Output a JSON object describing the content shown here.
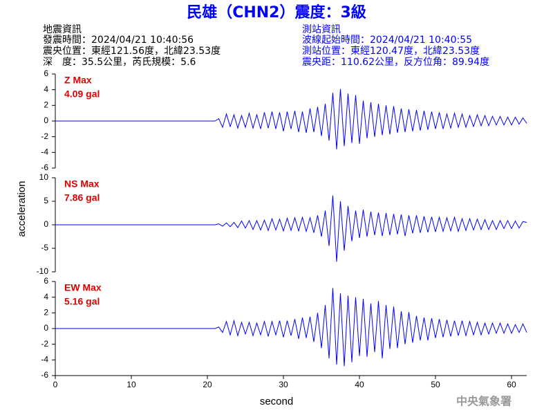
{
  "header": {
    "title": "民雄（CHN2）震度：3級",
    "left": [
      "地震資訊",
      "發震時間：2024/04/21 10:40:56",
      "震央位置：東經121.56度，北緯23.53度",
      "深　度：35.5公里，芮氏規模：5.6"
    ],
    "right": [
      "測站資訊",
      "波線起始時間：2024/04/21 10:40:55",
      "測站位置：東經120.47度，北緯23.53度",
      "震央距：110.62公里，反方位角：89.94度"
    ]
  },
  "footer": "中央氣象署",
  "chart_data": [
    {
      "type": "line",
      "annotation": [
        "Z Max",
        "4.09 gal"
      ],
      "color": "#0000ff",
      "x": [
        0,
        21,
        21.5,
        22,
        22.5,
        23,
        23.5,
        24,
        24.5,
        25,
        25.5,
        26,
        26.5,
        27,
        27.5,
        28,
        28.5,
        29,
        29.5,
        30,
        30.5,
        31,
        31.5,
        32,
        32.5,
        33,
        33.5,
        34,
        34.5,
        35,
        35.5,
        36,
        36.5,
        37,
        37.5,
        38,
        38.5,
        39,
        39.5,
        40,
        40.5,
        41,
        41.5,
        42,
        42.5,
        43,
        43.5,
        44,
        44.5,
        45,
        45.5,
        46,
        46.5,
        47,
        47.5,
        48,
        48.5,
        49,
        49.5,
        50,
        50.5,
        51,
        51.5,
        52,
        52.5,
        53,
        53.5,
        54,
        54.5,
        55,
        55.5,
        56,
        56.5,
        57,
        57.5,
        58,
        58.5,
        59,
        59.5,
        60,
        60.5,
        61,
        61.5,
        62
      ],
      "values": [
        0,
        0,
        0.3,
        -0.8,
        0.9,
        -0.7,
        0.8,
        -0.9,
        0.7,
        -0.8,
        1.0,
        -0.9,
        0.8,
        -1.0,
        1.1,
        -0.9,
        1.2,
        -1.0,
        1.1,
        -1.3,
        1.2,
        -1.0,
        1.3,
        -1.4,
        1.2,
        -1.5,
        1.6,
        -1.4,
        1.8,
        -1.9,
        2.2,
        -2.5,
        3.6,
        -3.6,
        4.09,
        -3.2,
        3.5,
        -2.8,
        3.3,
        -2.9,
        2.6,
        -2.2,
        2.4,
        -2.0,
        2.2,
        -1.8,
        2.0,
        -1.7,
        1.9,
        -1.5,
        1.6,
        -1.4,
        1.5,
        -1.3,
        1.4,
        -1.2,
        1.3,
        -1.1,
        1.2,
        -1.0,
        1.1,
        -1.0,
        0.9,
        -0.9,
        1.0,
        -0.8,
        0.9,
        -0.8,
        0.7,
        -0.7,
        0.8,
        -0.6,
        0.7,
        -0.6,
        0.6,
        -0.5,
        0.6,
        -0.5,
        0.5,
        -0.5,
        0.5,
        -0.4,
        0.4,
        -0.3
      ],
      "xlim": [
        0,
        62
      ],
      "ylim": [
        -6,
        6
      ],
      "yticks": [
        -6,
        -4,
        -2,
        0,
        2,
        4,
        6
      ]
    },
    {
      "type": "line",
      "annotation": [
        "NS Max",
        "7.86 gal"
      ],
      "color": "#0000ff",
      "ylabel": "acceleration",
      "x": [
        0,
        21,
        21.5,
        22,
        22.5,
        23,
        23.5,
        24,
        24.5,
        25,
        25.5,
        26,
        26.5,
        27,
        27.5,
        28,
        28.5,
        29,
        29.5,
        30,
        30.5,
        31,
        31.5,
        32,
        32.5,
        33,
        33.5,
        34,
        34.5,
        35,
        35.5,
        36,
        36.5,
        37,
        37.5,
        38,
        38.5,
        39,
        39.5,
        40,
        40.5,
        41,
        41.5,
        42,
        42.5,
        43,
        43.5,
        44,
        44.5,
        45,
        45.5,
        46,
        46.5,
        47,
        47.5,
        48,
        48.5,
        49,
        49.5,
        50,
        50.5,
        51,
        51.5,
        52,
        52.5,
        53,
        53.5,
        54,
        54.5,
        55,
        55.5,
        56,
        56.5,
        57,
        57.5,
        58,
        58.5,
        59,
        59.5,
        60,
        60.5,
        61,
        61.5,
        62
      ],
      "values": [
        0,
        0,
        0.2,
        -0.3,
        0.4,
        -0.4,
        0.5,
        -0.6,
        0.8,
        -0.7,
        0.9,
        -1.0,
        0.9,
        -1.1,
        1.0,
        -1.2,
        1.3,
        -1.1,
        1.2,
        -1.3,
        1.4,
        -1.2,
        1.5,
        -1.3,
        1.6,
        -1.4,
        1.5,
        -1.7,
        2.0,
        -2.5,
        3.0,
        -4.5,
        6.2,
        -7.86,
        5.0,
        -5.5,
        4.0,
        -3.5,
        3.0,
        -2.8,
        3.2,
        -2.5,
        2.8,
        -2.2,
        2.6,
        -2.4,
        2.5,
        -2.2,
        2.3,
        -2.0,
        2.2,
        -2.4,
        2.0,
        -1.8,
        2.0,
        -1.7,
        1.8,
        -1.6,
        1.7,
        -1.5,
        1.6,
        -1.4,
        1.5,
        -1.3,
        1.6,
        -1.4,
        1.3,
        -1.2,
        1.3,
        -1.1,
        1.2,
        -1.0,
        1.1,
        -1.0,
        0.9,
        -1.0,
        0.9,
        -0.8,
        0.9,
        -0.8,
        0.8,
        -0.7,
        0.7,
        0.5
      ],
      "xlim": [
        0,
        62
      ],
      "ylim": [
        -10,
        10
      ],
      "yticks": [
        -10,
        -5,
        0,
        5,
        10
      ]
    },
    {
      "type": "line",
      "annotation": [
        "EW Max",
        "5.16 gal"
      ],
      "color": "#0000ff",
      "xlabel": "second",
      "x": [
        0,
        21,
        21.5,
        22,
        22.5,
        23,
        23.5,
        24,
        24.5,
        25,
        25.5,
        26,
        26.5,
        27,
        27.5,
        28,
        28.5,
        29,
        29.5,
        30,
        30.5,
        31,
        31.5,
        32,
        32.5,
        33,
        33.5,
        34,
        34.5,
        35,
        35.5,
        36,
        36.5,
        37,
        37.5,
        38,
        38.5,
        39,
        39.5,
        40,
        40.5,
        41,
        41.5,
        42,
        42.5,
        43,
        43.5,
        44,
        44.5,
        45,
        45.5,
        46,
        46.5,
        47,
        47.5,
        48,
        48.5,
        49,
        49.5,
        50,
        50.5,
        51,
        51.5,
        52,
        52.5,
        53,
        53.5,
        54,
        54.5,
        55,
        55.5,
        56,
        56.5,
        57,
        57.5,
        58,
        58.5,
        59,
        59.5,
        60,
        60.5,
        61,
        61.5,
        62
      ],
      "values": [
        0,
        0,
        0.2,
        -0.5,
        0.9,
        -0.8,
        1.0,
        -0.9,
        0.8,
        -0.7,
        0.8,
        -0.9,
        0.7,
        -0.8,
        0.9,
        -1.0,
        0.9,
        -0.8,
        1.0,
        -1.1,
        1.0,
        -0.9,
        1.2,
        -1.3,
        1.4,
        -1.2,
        1.5,
        -1.7,
        2.0,
        -2.5,
        3.0,
        -3.8,
        5.16,
        -4.6,
        4.5,
        -4.8,
        4.2,
        -4.3,
        4.0,
        -3.5,
        3.8,
        -3.6,
        3.2,
        -3.0,
        3.5,
        -3.8,
        3.0,
        -2.6,
        2.8,
        -2.5,
        2.2,
        -2.0,
        2.1,
        -1.8,
        1.6,
        -1.5,
        1.4,
        -1.5,
        1.3,
        -1.2,
        1.2,
        -1.1,
        1.1,
        -1.0,
        1.0,
        -0.9,
        1.0,
        -0.9,
        0.9,
        -0.8,
        0.8,
        -0.8,
        0.7,
        -0.7,
        0.7,
        -0.6,
        0.7,
        -0.6,
        0.6,
        -0.6,
        0.5,
        -0.5,
        0.6,
        -0.5
      ],
      "xlim": [
        0,
        62
      ],
      "ylim": [
        -6,
        6
      ],
      "yticks": [
        -6,
        -4,
        -2,
        0,
        2,
        4,
        6
      ],
      "xticks": [
        0,
        10,
        20,
        30,
        40,
        50,
        60
      ]
    }
  ]
}
